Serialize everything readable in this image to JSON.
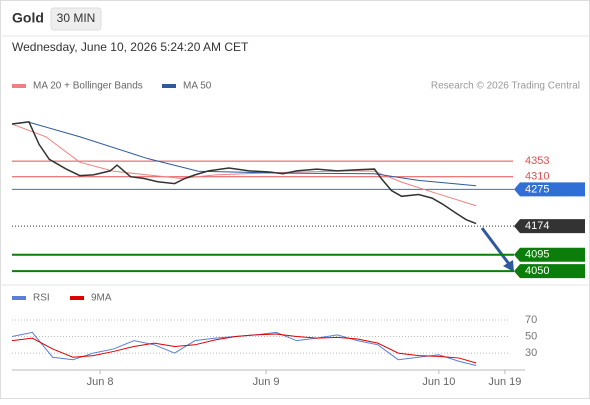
{
  "header": {
    "title": "Gold",
    "interval": "30 MIN",
    "timestamp": "Wednesday, June 10, 2026 5:24:20 AM CET",
    "credit": "Research © 2026 Trading Central"
  },
  "chart_data": [
    {
      "type": "line",
      "color": "#333333",
      "x": [
        0,
        5,
        8,
        11,
        16,
        20,
        24,
        29,
        31,
        35,
        39,
        43,
        48,
        51,
        54,
        58,
        64,
        70,
        76,
        80,
        84,
        90,
        96,
        102,
        107,
        109,
        112,
        115,
        120,
        124,
        127,
        131,
        134,
        137
      ],
      "values": [
        4455,
        4461,
        4399,
        4358,
        4331,
        4313,
        4315,
        4326,
        4342,
        4310,
        4305,
        4296,
        4291,
        4305,
        4315,
        4326,
        4334,
        4326,
        4323,
        4318,
        4326,
        4331,
        4326,
        4329,
        4331,
        4305,
        4272,
        4256,
        4261,
        4251,
        4235,
        4210,
        4192,
        4181
      ],
      "series": [
        {
          "name": "MA 20 + Bollinger Bands",
          "color": "#f08080",
          "x": [
            0,
            10,
            20,
            30,
            40,
            50,
            60,
            80,
            100,
            107,
            115,
            125,
            137
          ],
          "values": [
            4455,
            4420,
            4350,
            4325,
            4315,
            4305,
            4315,
            4322,
            4326,
            4325,
            4295,
            4265,
            4230
          ]
        },
        {
          "name": "MA 50",
          "color": "#2e5a9c",
          "x": [
            5,
            20,
            40,
            55,
            80,
            107,
            120,
            137
          ],
          "values": [
            4460,
            4420,
            4360,
            4325,
            4320,
            4318,
            4300,
            4285
          ]
        }
      ],
      "levels": [
        {
          "value": 4353,
          "color": "#e05050",
          "style": "text"
        },
        {
          "value": 4310,
          "color": "#e05050",
          "style": "text"
        },
        {
          "value": 4275,
          "color": "#2f6fd6",
          "style": "box"
        },
        {
          "value": 4174,
          "color": "#333333",
          "style": "box"
        },
        {
          "value": 4095,
          "color": "#0a7d0a",
          "style": "box"
        },
        {
          "value": 4050,
          "color": "#0a7d0a",
          "style": "box"
        }
      ],
      "xlim": [
        0,
        147
      ],
      "ylim": [
        4020,
        4535
      ]
    },
    {
      "type": "line",
      "x": [
        0,
        6,
        12,
        18,
        24,
        30,
        36,
        42,
        48,
        54,
        60,
        66,
        72,
        78,
        84,
        90,
        96,
        102,
        108,
        114,
        120,
        126,
        132,
        137
      ],
      "series": [
        {
          "name": "RSI",
          "color": "#5b7fd6",
          "values": [
            50,
            55,
            25,
            22,
            30,
            35,
            45,
            40,
            30,
            45,
            48,
            50,
            52,
            55,
            45,
            48,
            52,
            45,
            40,
            22,
            25,
            28,
            20,
            15
          ]
        },
        {
          "name": "9MA",
          "color": "#e00000",
          "values": [
            45,
            48,
            35,
            25,
            27,
            32,
            38,
            42,
            38,
            40,
            46,
            50,
            52,
            53,
            50,
            48,
            49,
            47,
            42,
            30,
            27,
            26,
            24,
            18
          ]
        }
      ],
      "xlim": [
        0,
        147
      ],
      "ylim": [
        12,
        82
      ],
      "yticks": [
        70,
        50,
        30
      ],
      "grid": true,
      "xticks": [
        {
          "value": 26,
          "label": "Jun 8"
        },
        {
          "value": 75,
          "label": "Jun 9"
        },
        {
          "value": 126,
          "label": "Jun 10"
        },
        {
          "value": 145.5,
          "label": "Jun 19"
        }
      ]
    }
  ]
}
